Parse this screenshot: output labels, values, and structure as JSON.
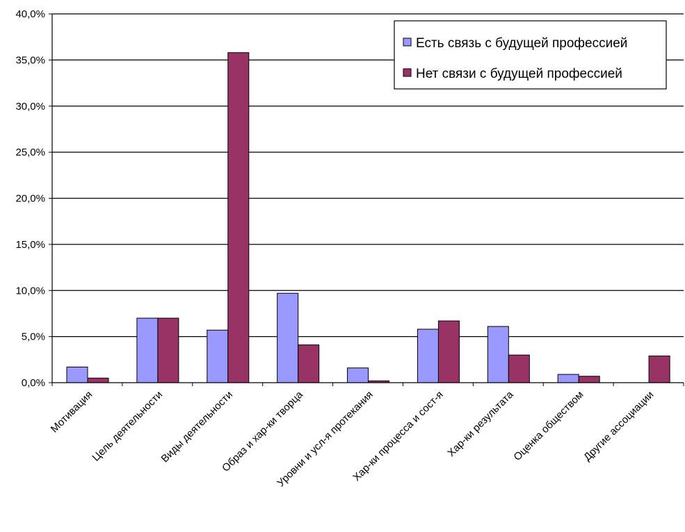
{
  "chart_data": {
    "type": "bar",
    "categories": [
      "Мотивация",
      "Цель деятельности",
      "Виды деятельности",
      "Образ и хар-ки творца",
      "Уровни и усл-я протекания",
      "Хар-ки процесса и сост-я",
      "Хар-ки результата",
      "Оценка обществом",
      "Другие ассоциации"
    ],
    "series": [
      {
        "name": "Есть связь с будущей профессией",
        "color": "#9999ff",
        "values": [
          1.7,
          7.0,
          5.7,
          9.7,
          1.6,
          5.8,
          6.1,
          0.9,
          0.0
        ]
      },
      {
        "name": "Нет связи с будущей профессией",
        "color": "#993366",
        "values": [
          0.5,
          7.0,
          35.8,
          4.1,
          0.2,
          6.7,
          3.0,
          0.7,
          2.9
        ]
      }
    ],
    "ylim": [
      0,
      40
    ],
    "yticks": [
      "0,0%",
      "5,0%",
      "10,0%",
      "15,0%",
      "20,0%",
      "25,0%",
      "30,0%",
      "35,0%",
      "40,0%"
    ],
    "grid": true,
    "legend_position": "top-right",
    "title": "",
    "xlabel": "",
    "ylabel": ""
  }
}
